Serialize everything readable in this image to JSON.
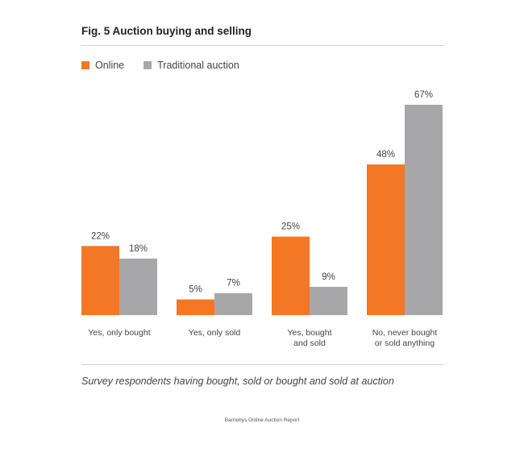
{
  "figure": {
    "title": "Fig. 5 Auction buying and selling",
    "caption": "Survey respondents having bought, sold or bought and sold at auction",
    "source": "Barnebys Online Auction Report"
  },
  "legend": [
    {
      "name": "Online",
      "color": "#f47725"
    },
    {
      "name": "Traditional auction",
      "color": "#a7a7aa"
    }
  ],
  "chart_data": {
    "type": "bar",
    "categories": [
      [
        "Yes, only bought"
      ],
      [
        "Yes, only sold"
      ],
      [
        "Yes, bought",
        "and sold"
      ],
      [
        "No, never bought",
        "or sold anything"
      ]
    ],
    "series": [
      {
        "name": "Online",
        "color": "#f47725",
        "values": [
          22,
          5,
          25,
          48
        ],
        "labels": [
          "22%",
          "5%",
          "25%",
          "48%"
        ]
      },
      {
        "name": "Traditional auction",
        "color": "#a7a7aa",
        "values": [
          18,
          7,
          9,
          67
        ],
        "labels": [
          "18%",
          "7%",
          "9%",
          "67%"
        ]
      }
    ],
    "ylim": [
      0,
      67
    ],
    "grid": false,
    "legend_position": "top-left"
  }
}
